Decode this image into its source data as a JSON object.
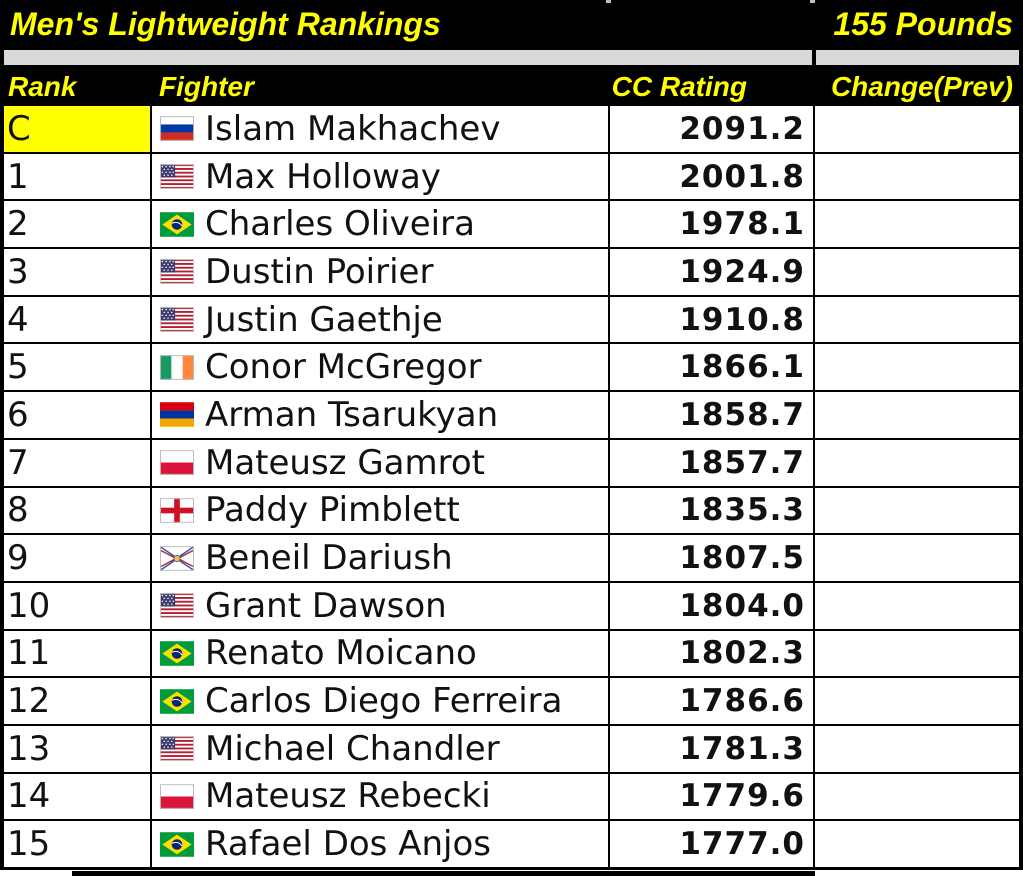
{
  "title": {
    "text": "Men's Lightweight Rankings",
    "weight_class": "155 Pounds"
  },
  "columns": {
    "rank": "Rank",
    "fighter": "Fighter",
    "rating": "CC Rating",
    "change": "Change(Prev)"
  },
  "colors": {
    "header_bg": "#000000",
    "header_text": "#ffff00",
    "champion_highlight": "#ffff00",
    "spacer_gray": "#d9d9d9",
    "row_bg": "#ffffff",
    "body_text": "#111111"
  },
  "rows": [
    {
      "rank": "C",
      "champion": true,
      "flag": "russia",
      "name": "Islam Makhachev",
      "rating": "2091.2",
      "change": ""
    },
    {
      "rank": "1",
      "champion": false,
      "flag": "usa",
      "name": "Max Holloway",
      "rating": "2001.8",
      "change": ""
    },
    {
      "rank": "2",
      "champion": false,
      "flag": "brazil",
      "name": "Charles Oliveira",
      "rating": "1978.1",
      "change": ""
    },
    {
      "rank": "3",
      "champion": false,
      "flag": "usa",
      "name": "Dustin Poirier",
      "rating": "1924.9",
      "change": ""
    },
    {
      "rank": "4",
      "champion": false,
      "flag": "usa",
      "name": "Justin Gaethje",
      "rating": "1910.8",
      "change": ""
    },
    {
      "rank": "5",
      "champion": false,
      "flag": "ireland",
      "name": "Conor McGregor",
      "rating": "1866.1",
      "change": ""
    },
    {
      "rank": "6",
      "champion": false,
      "flag": "armenia",
      "name": "Arman Tsarukyan",
      "rating": "1858.7",
      "change": ""
    },
    {
      "rank": "7",
      "champion": false,
      "flag": "poland",
      "name": "Mateusz Gamrot",
      "rating": "1857.7",
      "change": ""
    },
    {
      "rank": "8",
      "champion": false,
      "flag": "england",
      "name": "Paddy Pimblett",
      "rating": "1835.3",
      "change": ""
    },
    {
      "rank": "9",
      "champion": false,
      "flag": "assyria",
      "name": "Beneil Dariush",
      "rating": "1807.5",
      "change": ""
    },
    {
      "rank": "10",
      "champion": false,
      "flag": "usa",
      "name": "Grant Dawson",
      "rating": "1804.0",
      "change": ""
    },
    {
      "rank": "11",
      "champion": false,
      "flag": "brazil",
      "name": "Renato Moicano",
      "rating": "1802.3",
      "change": ""
    },
    {
      "rank": "12",
      "champion": false,
      "flag": "brazil",
      "name": "Carlos Diego Ferreira",
      "rating": "1786.6",
      "change": ""
    },
    {
      "rank": "13",
      "champion": false,
      "flag": "usa",
      "name": "Michael Chandler",
      "rating": "1781.3",
      "change": ""
    },
    {
      "rank": "14",
      "champion": false,
      "flag": "poland",
      "name": "Mateusz Rebecki",
      "rating": "1779.6",
      "change": ""
    },
    {
      "rank": "15",
      "champion": false,
      "flag": "brazil",
      "name": "Rafael Dos Anjos",
      "rating": "1777.0",
      "change": ""
    }
  ]
}
